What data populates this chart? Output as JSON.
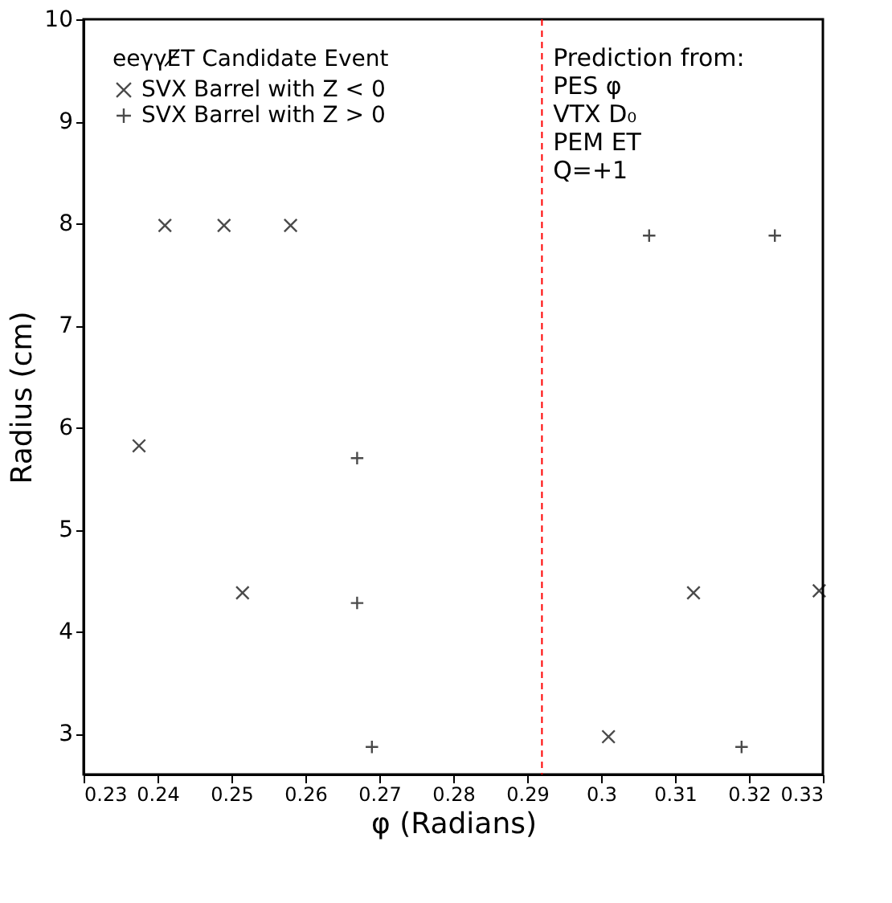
{
  "chart_data": {
    "type": "scatter",
    "xlabel": "φ (Radians)",
    "ylabel": "Radius (cm)",
    "legend_title": "eeγγE̸T Candidate Event",
    "legend": "top left",
    "grid": false,
    "xlim": [
      0.23,
      0.33
    ],
    "xticks": [
      0.23,
      0.24,
      0.25,
      0.26,
      0.27,
      0.28,
      0.29,
      0.3,
      0.31,
      0.32,
      0.33
    ],
    "ylim": [
      2.6,
      10
    ],
    "yticks": [
      3,
      4,
      5,
      6,
      7,
      8,
      9,
      10
    ],
    "series": [
      {
        "name": "SVX  Barrel with Z < 0",
        "color": "#000000",
        "marker": "x",
        "x": [
          0.2375,
          0.241,
          0.249,
          0.2515,
          0.258,
          0.301,
          0.3125,
          0.3295
        ],
        "values": [
          5.82,
          7.98,
          7.98,
          4.38,
          7.98,
          2.97,
          4.38,
          4.4
        ]
      },
      {
        "name": "SVX  Barrel with Z > 0",
        "color": "#000000",
        "marker": "cross",
        "x": [
          0.267,
          0.267,
          0.269,
          0.3065,
          0.3235,
          0.319
        ],
        "values": [
          5.7,
          4.28,
          2.87,
          7.88,
          7.88,
          2.87
        ]
      }
    ],
    "ref_lines": [
      {
        "axis": "x",
        "value": 0.292,
        "color": "#ff0000",
        "line_style": "dashed"
      }
    ],
    "annotations": [
      "Prediction from:",
      "PES φ",
      "VTX D₀",
      "PEM ET",
      "Q=+1"
    ]
  }
}
